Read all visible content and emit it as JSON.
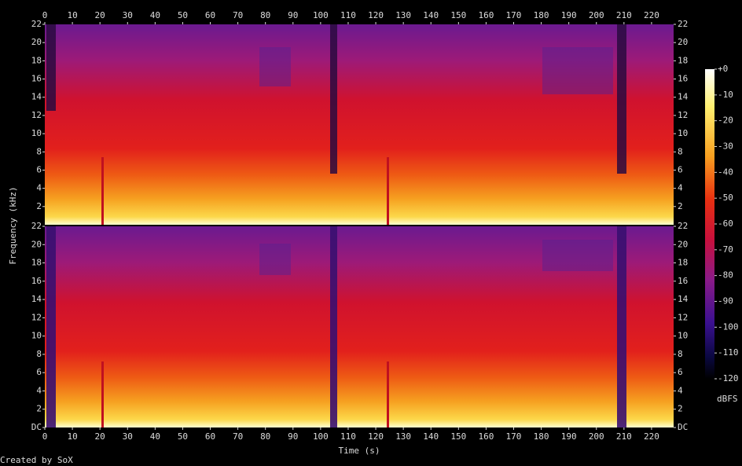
{
  "chart_data": [
    {
      "type": "spectrogram",
      "ylim": [
        0,
        22
      ],
      "xlim": [
        0,
        228
      ],
      "y_label": "Frequency (kHz)",
      "yticks": [
        2,
        4,
        6,
        8,
        10,
        12,
        14,
        16,
        18,
        20,
        22
      ],
      "xticks": [
        0,
        10,
        20,
        30,
        40,
        50,
        60,
        70,
        80,
        90,
        100,
        110,
        120,
        130,
        140,
        150,
        160,
        170,
        180,
        190,
        200,
        210,
        220
      ]
    },
    {
      "type": "spectrogram",
      "ylim": [
        0,
        22
      ],
      "xlim": [
        0,
        228
      ],
      "x_label": "Time (s)",
      "yticks": [
        {
          "value": 0,
          "label": "DC"
        },
        2,
        4,
        6,
        8,
        10,
        12,
        14,
        16,
        18,
        20,
        22
      ],
      "xticks": [
        0,
        10,
        20,
        30,
        40,
        50,
        60,
        70,
        80,
        90,
        100,
        110,
        120,
        130,
        140,
        150,
        160,
        170,
        180,
        190,
        200,
        210,
        220
      ]
    },
    {
      "type": "colorbar",
      "zlim": [
        -120,
        0
      ],
      "label": "dBFS",
      "zticks": [
        {
          "value": 0,
          "label": "+0"
        },
        -10,
        -20,
        -30,
        -40,
        -50,
        -60,
        -70,
        -80,
        -90,
        -100,
        -110,
        -120
      ]
    }
  ],
  "footer": "Created by SoX"
}
